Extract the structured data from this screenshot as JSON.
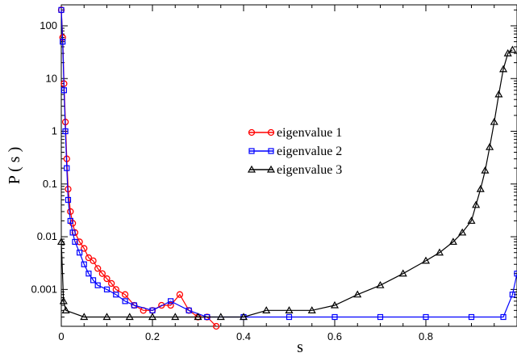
{
  "chart_data": {
    "type": "scatter",
    "title": "",
    "xlabel": "s",
    "ylabel": "P ( s )",
    "xlim": [
      0,
      1
    ],
    "ylim": [
      0.0002,
      250
    ],
    "y_scale": "log",
    "grid": false,
    "legend_placement": "center",
    "x_ticks": [
      0,
      0.2,
      0.4,
      0.6,
      0.8
    ],
    "x_tick_labels": [
      "0",
      "0.2",
      "0.4",
      "0.6",
      "0.8"
    ],
    "y_ticks": [
      0.001,
      0.01,
      0.1,
      1,
      10,
      100
    ],
    "y_tick_labels": [
      "0.001",
      "0.01",
      "0.1",
      "1",
      "10",
      "100"
    ],
    "series": [
      {
        "name": "eigenvalue 1",
        "color": "#ff0000",
        "marker": "circle",
        "x": [
          0.0,
          0.003,
          0.006,
          0.009,
          0.012,
          0.015,
          0.02,
          0.025,
          0.03,
          0.04,
          0.05,
          0.06,
          0.07,
          0.08,
          0.09,
          0.1,
          0.11,
          0.12,
          0.14,
          0.16,
          0.18,
          0.2,
          0.22,
          0.24,
          0.26,
          0.28,
          0.3,
          0.32,
          0.34
        ],
        "y": [
          200,
          60,
          8,
          1.5,
          0.3,
          0.08,
          0.03,
          0.018,
          0.012,
          0.008,
          0.006,
          0.004,
          0.0035,
          0.0025,
          0.002,
          0.0016,
          0.0013,
          0.001,
          0.0008,
          0.0005,
          0.0004,
          0.0004,
          0.0005,
          0.0005,
          0.0008,
          0.0004,
          0.0003,
          0.0003,
          0.0002
        ]
      },
      {
        "name": "eigenvalue 2",
        "color": "#0000ff",
        "marker": "square",
        "x": [
          0.0,
          0.003,
          0.006,
          0.009,
          0.012,
          0.015,
          0.02,
          0.025,
          0.03,
          0.04,
          0.05,
          0.06,
          0.07,
          0.08,
          0.1,
          0.12,
          0.14,
          0.16,
          0.2,
          0.24,
          0.28,
          0.32,
          0.4,
          0.5,
          0.6,
          0.7,
          0.8,
          0.9,
          0.97,
          0.99,
          1.0
        ],
        "y": [
          200,
          50,
          6,
          1.0,
          0.2,
          0.05,
          0.02,
          0.012,
          0.008,
          0.005,
          0.003,
          0.002,
          0.0015,
          0.0012,
          0.001,
          0.0008,
          0.0006,
          0.0005,
          0.0004,
          0.0006,
          0.0004,
          0.0003,
          0.0003,
          0.0003,
          0.0003,
          0.0003,
          0.0003,
          0.0003,
          0.0003,
          0.0008,
          0.002
        ]
      },
      {
        "name": "eigenvalue 3",
        "color": "#000000",
        "marker": "triangle",
        "x": [
          0.0,
          0.005,
          0.01,
          0.05,
          0.1,
          0.15,
          0.2,
          0.25,
          0.3,
          0.35,
          0.4,
          0.45,
          0.5,
          0.55,
          0.6,
          0.65,
          0.7,
          0.75,
          0.8,
          0.83,
          0.86,
          0.88,
          0.9,
          0.91,
          0.92,
          0.93,
          0.94,
          0.95,
          0.96,
          0.97,
          0.98,
          0.99
        ],
        "y": [
          0.008,
          0.0006,
          0.0004,
          0.0003,
          0.0003,
          0.0003,
          0.0003,
          0.0003,
          0.0003,
          0.0003,
          0.0003,
          0.0004,
          0.0004,
          0.0004,
          0.0005,
          0.0008,
          0.0012,
          0.002,
          0.0035,
          0.005,
          0.008,
          0.012,
          0.02,
          0.04,
          0.08,
          0.18,
          0.5,
          1.5,
          5,
          15,
          30,
          35
        ]
      }
    ]
  }
}
